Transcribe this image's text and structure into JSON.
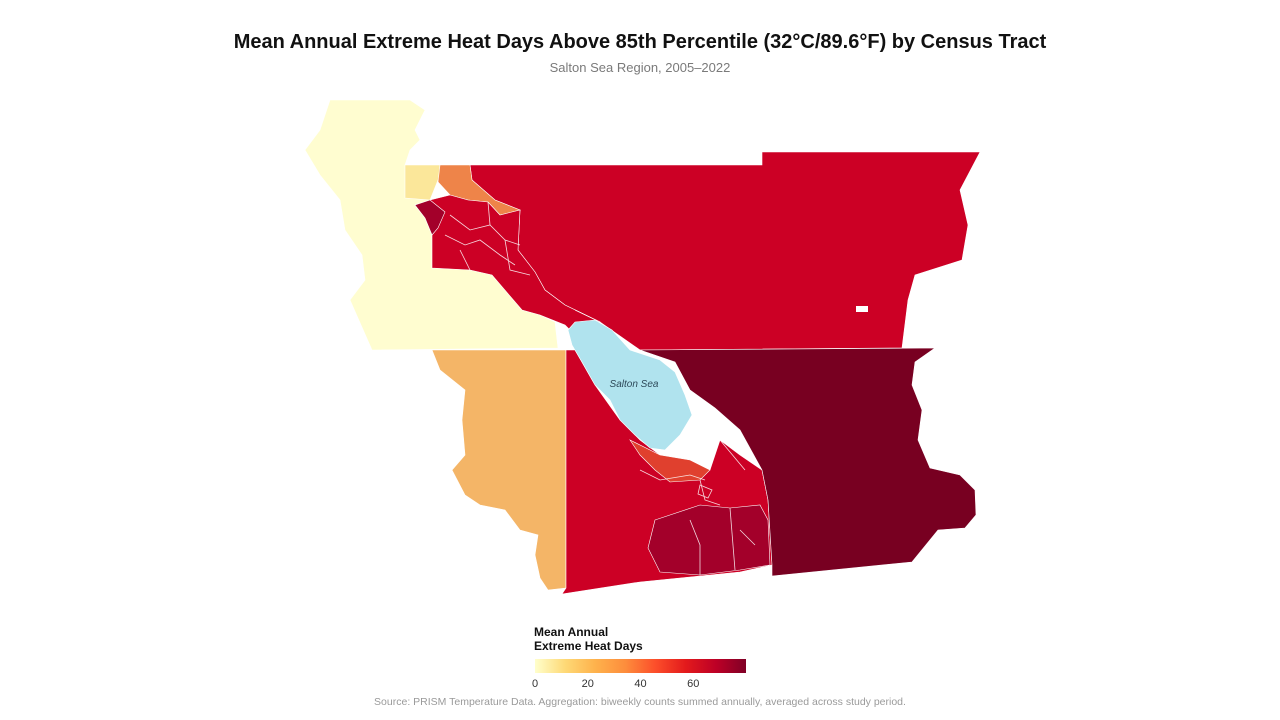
{
  "header": {
    "title": "Mean Annual Extreme Heat Days Above 85th Percentile (32°C/89.6°F) by Census Tract",
    "subtitle": "Salton Sea Region, 2005–2022"
  },
  "map": {
    "lake_label": "Salton Sea",
    "colors": {
      "low": "#fffdd0",
      "pale": "#fbe79a",
      "light_orange": "#f4b567",
      "orange": "#ee8449",
      "red_orange": "#e0402e",
      "red": "#cc0025",
      "dark_red": "#a3002a",
      "darkest": "#780021",
      "lake": "#b0e3ee",
      "tract_border": "#ffffff"
    }
  },
  "legend": {
    "title_line1": "Mean Annual",
    "title_line2": "Extreme Heat Days",
    "ticks": [
      "0",
      "20",
      "40",
      "60"
    ],
    "range": [
      0,
      80
    ],
    "gradient": [
      "#ffffcc",
      "#fed976",
      "#feb24c",
      "#fd8d3c",
      "#fc4e2a",
      "#e31a1c",
      "#bd0026",
      "#800026"
    ]
  },
  "footer": {
    "source": "Source: PRISM Temperature Data. Aggregation: biweekly counts summed annually, averaged across study period."
  }
}
